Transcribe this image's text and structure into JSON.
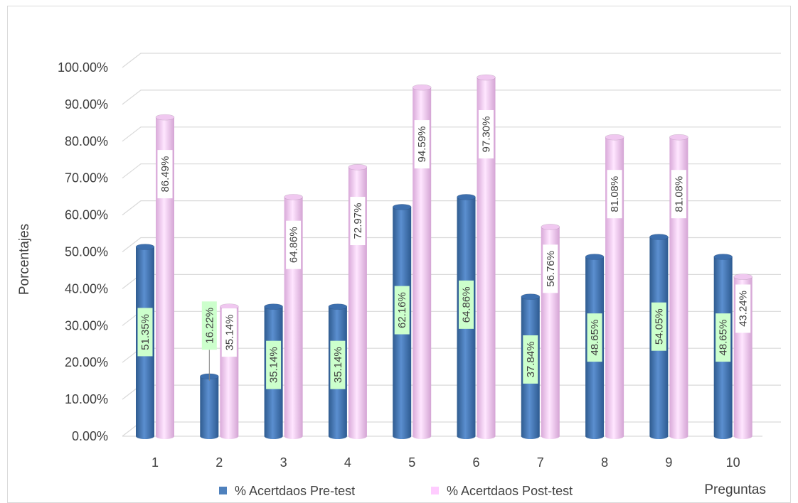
{
  "chart_data": {
    "type": "bar",
    "categories": [
      "1",
      "2",
      "3",
      "4",
      "5",
      "6",
      "7",
      "8",
      "9",
      "10"
    ],
    "series": [
      {
        "name": "% Acertdaos Pre-test",
        "values": [
          51.35,
          16.22,
          35.14,
          35.14,
          62.16,
          64.86,
          37.84,
          48.65,
          54.05,
          48.65
        ],
        "labels": [
          "51.35%",
          "16.22%",
          "35.14%",
          "35.14%",
          "62.16%",
          "64.86%",
          "37.84%",
          "48.65%",
          "54.05%",
          "48.65%"
        ],
        "color": "#4f81bd",
        "label_bg": "#ccffcc"
      },
      {
        "name": "% Acertdaos Post-test",
        "values": [
          86.49,
          35.14,
          64.86,
          72.97,
          94.59,
          97.3,
          56.76,
          81.08,
          81.08,
          43.24
        ],
        "labels": [
          "86.49%",
          "35.14%",
          "64.86%",
          "72.97%",
          "94.59%",
          "97.30%",
          "56.76%",
          "81.08%",
          "81.08%",
          "43.24%"
        ],
        "color": "#ffccff",
        "label_bg": "#ffffff"
      }
    ],
    "ylabel": "Porcentajes",
    "xlabel": "Preguntas",
    "ylim": [
      0,
      100
    ],
    "yticks": [
      "0.00%",
      "10.00%",
      "20.00%",
      "30.00%",
      "40.00%",
      "50.00%",
      "60.00%",
      "70.00%",
      "80.00%",
      "90.00%",
      "100.00%"
    ],
    "grid": true,
    "legend_position": "bottom"
  }
}
